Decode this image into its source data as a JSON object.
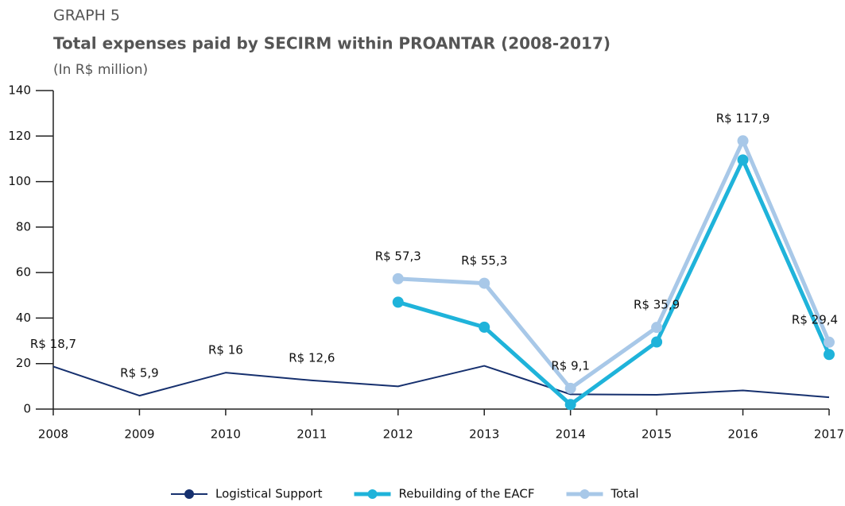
{
  "chart_data": {
    "type": "line",
    "kicker": "GRAPH 5",
    "title": "Total expenses paid by SECIRM within PROANTAR (2008-2017)",
    "subtitle": "(In R$ million)",
    "categories": [
      "2008",
      "2009",
      "2010",
      "2011",
      "2012",
      "2013",
      "2014",
      "2015",
      "2016",
      "2017"
    ],
    "series": [
      {
        "name": "Logistical Support",
        "color": "#16306e",
        "values": [
          18.7,
          5.9,
          16,
          12.6,
          10,
          19,
          6.5,
          6.3,
          8.2,
          5.2
        ],
        "value_labels": [
          "R$ 18,7",
          "R$ 5,9",
          "R$ 16",
          "R$ 12,6",
          null,
          null,
          null,
          null,
          null,
          null
        ]
      },
      {
        "name": "Rebuilding of the EACF",
        "color": "#1fb3da",
        "values": [
          null,
          null,
          null,
          null,
          47,
          36,
          2,
          29.5,
          109.5,
          24
        ]
      },
      {
        "name": "Total",
        "color": "#a8c8e8",
        "values": [
          null,
          null,
          null,
          null,
          57.3,
          55.3,
          9.1,
          35.9,
          117.9,
          29.4
        ],
        "value_labels": [
          null,
          null,
          null,
          null,
          "R$ 57,3",
          "R$ 55,3",
          "R$ 9,1",
          "R$ 35,9",
          "R$ 117,9",
          "R$ 29,4"
        ]
      }
    ],
    "ylim": [
      0,
      140
    ],
    "yticks": [
      0,
      20,
      40,
      60,
      80,
      100,
      120,
      140
    ],
    "grid": false,
    "legend": "bottom"
  }
}
